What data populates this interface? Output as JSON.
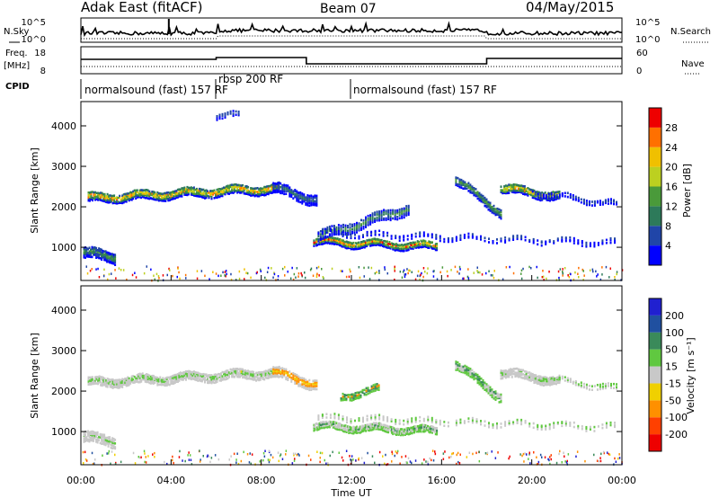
{
  "header": {
    "station": "Adak East (fitACF)",
    "beam": "Beam 07",
    "date": "04/May/2015"
  },
  "panels": {
    "nsky_label": "N.Sky",
    "nsearch_label": "N.Search",
    "freq_label": "Freq.",
    "freq_unit": "[MHz]",
    "nave_label": "Nave",
    "cpid_label": "CPID",
    "nsky_ticks": [
      "10^5",
      "10^0"
    ],
    "nsearch_ticks": [
      "10^5",
      "10^0"
    ],
    "freq_ticks": [
      "18",
      "8"
    ],
    "nave_ticks": [
      "60",
      "0"
    ]
  },
  "cpid": [
    {
      "label": "normalsound (fast) 157 RF",
      "start": 0.0
    },
    {
      "label": "rbsp 200 RF",
      "start": 6.0
    },
    {
      "label": "normalsound (fast) 157 RF",
      "start": 12.0
    }
  ],
  "colors": {
    "power": [
      "#0000ff",
      "#2045a8",
      "#2d7a5a",
      "#4a9a3a",
      "#bcd020",
      "#f0c000",
      "#ff7000",
      "#ee0000"
    ],
    "velocity": [
      "#2020d0",
      "#2050a0",
      "#3a8a5a",
      "#60c840",
      "#c8c8c8",
      "#f0d000",
      "#ff9000",
      "#ff4000",
      "#ee0000"
    ]
  },
  "chart_data": [
    {
      "type": "heatmap",
      "name": "Power",
      "ylabel": "Slant Range [km]",
      "yticks": [
        1000,
        2000,
        3000,
        4000
      ],
      "ylim": [
        180,
        4600
      ],
      "xlim": [
        0,
        24
      ],
      "colorbar": {
        "label": "Power [dB]",
        "ticks": [
          4,
          8,
          12,
          16,
          20,
          24,
          28
        ]
      }
    },
    {
      "type": "heatmap",
      "name": "Velocity",
      "ylabel": "Slant Range [km]",
      "yticks": [
        1000,
        2000,
        3000,
        4000
      ],
      "ylim": [
        180,
        4600
      ],
      "xlim": [
        0,
        24
      ],
      "xlabel": "Time UT",
      "xticks": [
        "00:00",
        "04:00",
        "08:00",
        "12:00",
        "16:00",
        "20:00",
        "00:00"
      ],
      "colorbar": {
        "label": "Velocity [m s⁻¹]",
        "ticks": [
          200,
          100,
          50,
          15,
          -15,
          -50,
          -100,
          -200
        ]
      }
    }
  ]
}
